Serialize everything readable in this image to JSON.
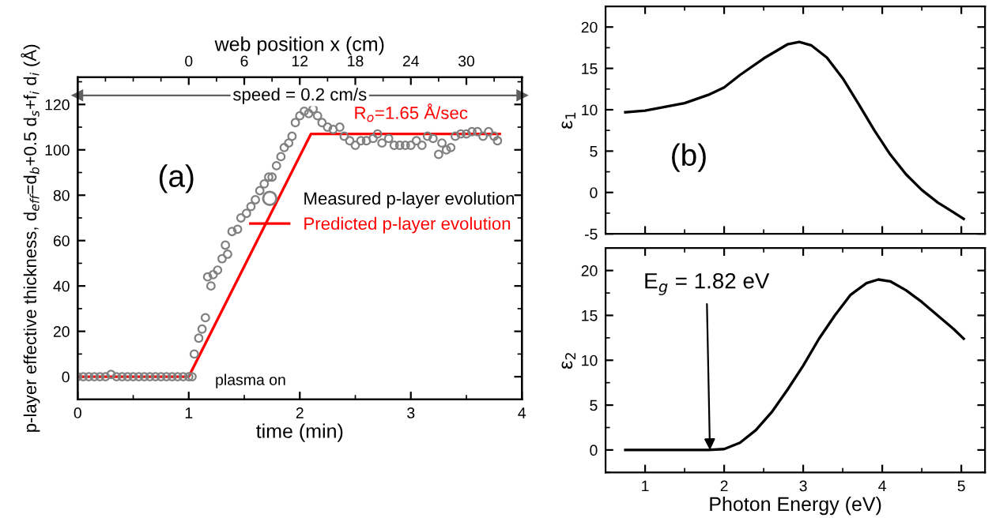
{
  "chart_data": [
    {
      "type": "scatter",
      "xlabel": "time (min)",
      "ylabel": "p-layer effective thickness, d$_{eff}$=d$_{b}$+0.5 d$_{s}$+f$_{i}$ d$_{i}$ (Å)",
      "x2label": "web position x (cm)",
      "xlim": [
        0,
        4
      ],
      "xticks": [
        0,
        1,
        2,
        3,
        4
      ],
      "ylim": [
        -10,
        132
      ],
      "yticks": [
        0,
        20,
        40,
        60,
        80,
        100,
        120
      ],
      "x2lim": [
        -12,
        36
      ],
      "x2ticks": [
        0,
        6,
        12,
        18,
        24,
        30
      ],
      "legend": "right",
      "marker": "circle",
      "series": [
        {
          "name": "Measured p-layer evolution",
          "type": "scatter",
          "color": "#808080",
          "x": [
            0,
            0.05,
            0.1,
            0.15,
            0.2,
            0.25,
            0.3,
            0.35,
            0.4,
            0.45,
            0.5,
            0.55,
            0.6,
            0.65,
            0.7,
            0.75,
            0.8,
            0.85,
            0.9,
            0.95,
            1.0,
            1.03,
            1.05,
            1.09,
            1.12,
            1.15,
            1.17,
            1.2,
            1.22,
            1.26,
            1.3,
            1.33,
            1.35,
            1.39,
            1.44,
            1.47,
            1.52,
            1.56,
            1.6,
            1.64,
            1.68,
            1.72,
            1.75,
            1.79,
            1.83,
            1.86,
            1.9,
            1.93,
            1.96,
            2.0,
            2.04,
            2.08,
            2.12,
            2.16,
            2.2,
            2.25,
            2.3,
            2.36,
            2.4,
            2.45,
            2.5,
            2.55,
            2.6,
            2.66,
            2.7,
            2.74,
            2.8,
            2.85,
            2.9,
            2.95,
            3.0,
            3.05,
            3.1,
            3.15,
            3.2,
            3.25,
            3.28,
            3.32,
            3.36,
            3.4,
            3.45,
            3.5,
            3.55,
            3.6,
            3.65,
            3.7,
            3.75,
            3.78
          ],
          "values": [
            0,
            0,
            0,
            0,
            0,
            0,
            1,
            0,
            0,
            0,
            0,
            0,
            0,
            0,
            0,
            0,
            0,
            0,
            0,
            0,
            0,
            0,
            10,
            17,
            21,
            26,
            44,
            40,
            45,
            47,
            52,
            58,
            54,
            64,
            65,
            70,
            72,
            75,
            78,
            82,
            85,
            88,
            88,
            93,
            97,
            101,
            103,
            106,
            112,
            115,
            117,
            116,
            118,
            115,
            112,
            110,
            109,
            110,
            106,
            104,
            102,
            104,
            104,
            105,
            107,
            103,
            105,
            102,
            102,
            102,
            102,
            104,
            102,
            106,
            105,
            98,
            103,
            100,
            101,
            106,
            107,
            107,
            108,
            108,
            106,
            108,
            106,
            104
          ]
        },
        {
          "name": "Predicted p-layer evolution",
          "type": "line",
          "color": "#ff0000",
          "marker": "none",
          "x": [
            0,
            1,
            2.1,
            3.8
          ],
          "values": [
            0,
            0,
            107,
            107
          ]
        }
      ],
      "ref_lines": [
        {
          "axis": "y",
          "value": 124,
          "color": "#606060"
        }
      ],
      "annotations": [
        "(a)",
        {
          "text": "plasma on",
          "x": 1,
          "y": 0
        },
        {
          "text": "R$_{o}$=1.65 Å/sec",
          "x": 3,
          "y": 107
        },
        "speed = 0.2 cm/s"
      ]
    },
    {
      "type": "line",
      "ylabel": "ε$_{1}$",
      "xlim": [
        0.5,
        5.3
      ],
      "xticks": [
        1,
        2,
        3,
        4,
        5
      ],
      "ylim": [
        -5,
        22.5
      ],
      "yticks": [
        -5,
        0,
        5,
        10,
        15,
        20
      ],
      "tick_labels": "y",
      "marker": "none",
      "series": [
        {
          "color": "#000000",
          "x": [
            0.75,
            1.0,
            1.5,
            1.8,
            2.0,
            2.2,
            2.5,
            2.8,
            2.95,
            3.1,
            3.3,
            3.5,
            3.7,
            3.9,
            4.1,
            4.3,
            4.5,
            4.7,
            4.9,
            5.03
          ],
          "values": [
            9.7,
            9.9,
            10.8,
            11.8,
            12.7,
            14.2,
            16.2,
            17.9,
            18.2,
            17.8,
            16.3,
            13.8,
            10.7,
            7.5,
            4.6,
            2.2,
            0.3,
            -1.2,
            -2.4,
            -3.2
          ]
        }
      ],
      "annotations": [
        "(b)"
      ]
    },
    {
      "type": "line",
      "ylabel": "ε$_{2}$",
      "xlabel": "Photon Energy (eV)",
      "xlim": [
        0.5,
        5.3
      ],
      "xticks": [
        1,
        2,
        3,
        4,
        5
      ],
      "ylim": [
        -2.5,
        22.5
      ],
      "yticks": [
        0,
        5,
        10,
        15,
        20
      ],
      "marker": "none",
      "series": [
        {
          "color": "#000000",
          "x": [
            0.75,
            1.8,
            2.0,
            2.2,
            2.4,
            2.6,
            2.8,
            3.0,
            3.2,
            3.4,
            3.6,
            3.8,
            3.95,
            4.1,
            4.3,
            4.5,
            4.7,
            4.9,
            5.03
          ],
          "values": [
            0,
            0,
            0.1,
            0.8,
            2.2,
            4.2,
            6.7,
            9.4,
            12.4,
            15.0,
            17.3,
            18.6,
            19.0,
            18.8,
            17.8,
            16.5,
            15.0,
            13.5,
            12.4
          ]
        }
      ],
      "annotations": [
        {
          "text": "E$_{g}$ = 1.82 eV",
          "x": 1.82,
          "y": 0
        }
      ]
    }
  ]
}
